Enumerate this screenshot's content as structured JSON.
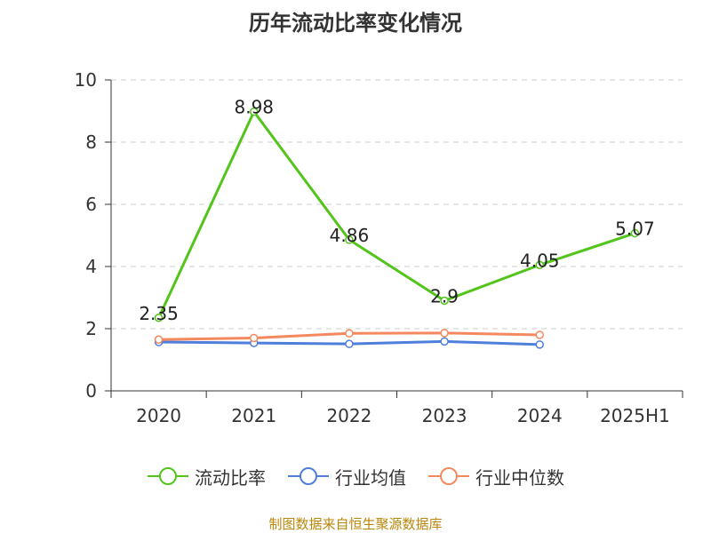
{
  "chart_data": {
    "type": "line",
    "title": "历年流动比率变化情况",
    "categories": [
      "2020",
      "2021",
      "2022",
      "2023",
      "2024",
      "2025H1"
    ],
    "y_ticks": [
      "0",
      "2",
      "4",
      "6",
      "8",
      "10"
    ],
    "ylim": [
      0,
      10
    ],
    "grid": true,
    "legend_position": "bottom",
    "series": [
      {
        "name": "流动比率",
        "color": "#52c41a",
        "values": [
          2.35,
          8.98,
          4.86,
          2.9,
          4.05,
          5.07
        ],
        "labels": [
          "2.35",
          "8.98",
          "4.86",
          "2.9",
          "4.05",
          "5.07"
        ]
      },
      {
        "name": "行业均值",
        "color": "#4f7fdb",
        "values": [
          1.57,
          1.54,
          1.51,
          1.59,
          1.49,
          null
        ]
      },
      {
        "name": "行业中位数",
        "color": "#f4895f",
        "values": [
          1.65,
          1.7,
          1.85,
          1.86,
          1.8,
          null
        ]
      }
    ]
  },
  "source_note": "制图数据来自恒生聚源数据库"
}
